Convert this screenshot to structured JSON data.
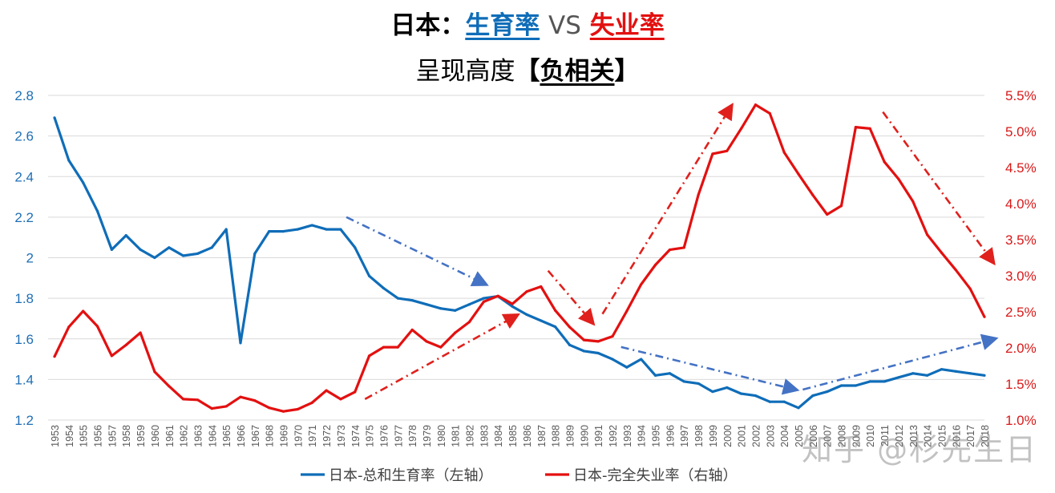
{
  "title": {
    "prefix": "日本：",
    "left_metric": "生育率",
    "vs": "VS",
    "right_metric": "失业率"
  },
  "subtitle": {
    "prefix": "呈现高度",
    "bracket_open": "【",
    "emphasis": "负相关",
    "bracket_close": "】"
  },
  "watermark": "知乎 @杉先生日",
  "colors": {
    "fertility": "#0f6db8",
    "unemployment": "#e31010",
    "arrow_blue": "#4472c4",
    "arrow_red": "#e0201c",
    "grid": "#d9d9d9"
  },
  "chart_data": {
    "type": "line",
    "title": "日本：生育率 VS 失业率",
    "x": [
      1953,
      1954,
      1955,
      1956,
      1957,
      1958,
      1959,
      1960,
      1961,
      1962,
      1963,
      1964,
      1965,
      1966,
      1967,
      1968,
      1969,
      1970,
      1971,
      1972,
      1973,
      1974,
      1975,
      1976,
      1977,
      1978,
      1979,
      1980,
      1981,
      1982,
      1983,
      1984,
      1985,
      1986,
      1987,
      1988,
      1989,
      1990,
      1991,
      1992,
      1993,
      1994,
      1995,
      1996,
      1997,
      1998,
      1999,
      2000,
      2001,
      2002,
      2003,
      2004,
      2005,
      2006,
      2007,
      2008,
      2009,
      2010,
      2011,
      2012,
      2013,
      2014,
      2015,
      2016,
      2017,
      2018
    ],
    "y_left": {
      "ylim": [
        1.2,
        2.8
      ],
      "ticks": [
        "1.2",
        "1.4",
        "1.6",
        "1.8",
        "2",
        "2.2",
        "2.4",
        "2.6",
        "2.8"
      ]
    },
    "y_right": {
      "ylim": [
        1.0,
        5.5
      ],
      "ticks": [
        "1.0%",
        "1.5%",
        "2.0%",
        "2.5%",
        "3.0%",
        "3.5%",
        "4.0%",
        "4.5%",
        "5.0%",
        "5.5%"
      ]
    },
    "grid": true,
    "legend_position": "bottom",
    "series": [
      {
        "name": "日本-总和生育率（左轴）",
        "axis": "left",
        "values": [
          2.69,
          2.48,
          2.37,
          2.23,
          2.04,
          2.11,
          2.04,
          2.0,
          2.05,
          2.01,
          2.02,
          2.05,
          2.14,
          1.58,
          2.02,
          2.13,
          2.13,
          2.14,
          2.16,
          2.14,
          2.14,
          2.05,
          1.91,
          1.85,
          1.8,
          1.79,
          1.77,
          1.75,
          1.74,
          1.77,
          1.8,
          1.81,
          1.76,
          1.72,
          1.69,
          1.66,
          1.57,
          1.54,
          1.53,
          1.5,
          1.46,
          1.5,
          1.42,
          1.43,
          1.39,
          1.38,
          1.34,
          1.36,
          1.33,
          1.32,
          1.29,
          1.29,
          1.26,
          1.32,
          1.34,
          1.37,
          1.37,
          1.39,
          1.39,
          1.41,
          1.43,
          1.42,
          1.45,
          1.44,
          1.43,
          1.42
        ]
      },
      {
        "name": "日本-完全失业率（右轴）",
        "axis": "right",
        "values": [
          1.88,
          2.29,
          2.51,
          2.3,
          1.89,
          2.04,
          2.21,
          1.67,
          1.47,
          1.29,
          1.28,
          1.16,
          1.19,
          1.32,
          1.27,
          1.17,
          1.12,
          1.15,
          1.24,
          1.41,
          1.29,
          1.39,
          1.89,
          2.01,
          2.01,
          2.25,
          2.09,
          2.01,
          2.21,
          2.36,
          2.64,
          2.72,
          2.61,
          2.78,
          2.85,
          2.52,
          2.29,
          2.11,
          2.09,
          2.16,
          2.51,
          2.88,
          3.15,
          3.36,
          3.39,
          4.12,
          4.69,
          4.73,
          5.04,
          5.37,
          5.25,
          4.71,
          4.41,
          4.12,
          3.85,
          3.97,
          5.06,
          5.04,
          4.58,
          4.34,
          4.03,
          3.57,
          3.32,
          3.08,
          2.82,
          2.43
        ]
      }
    ],
    "annotations": [
      {
        "type": "trend-arrow",
        "color": "blue",
        "axis": "left",
        "from": [
          1973.4,
          2.2
        ],
        "to": [
          1983.1,
          1.87
        ]
      },
      {
        "type": "trend-arrow",
        "color": "blue",
        "axis": "left",
        "from": [
          1992.6,
          1.56
        ],
        "to": [
          2004.8,
          1.35
        ]
      },
      {
        "type": "trend-arrow",
        "color": "blue",
        "axis": "left",
        "from": [
          2005.3,
          1.35
        ],
        "to": [
          2018.7,
          1.6
        ]
      },
      {
        "type": "trend-arrow",
        "color": "red",
        "axis": "right",
        "from": [
          1974.7,
          1.29
        ],
        "to": [
          1985.3,
          2.45
        ]
      },
      {
        "type": "trend-arrow",
        "color": "red",
        "axis": "right",
        "from": [
          1987.5,
          3.07
        ],
        "to": [
          1990.6,
          2.35
        ]
      },
      {
        "type": "trend-arrow",
        "color": "red",
        "axis": "right",
        "from": [
          1991.3,
          2.47
        ],
        "to": [
          2000.3,
          5.35
        ]
      },
      {
        "type": "trend-arrow",
        "color": "red",
        "axis": "right",
        "from": [
          2010.9,
          5.27
        ],
        "to": [
          2018.6,
          3.19
        ]
      }
    ]
  }
}
